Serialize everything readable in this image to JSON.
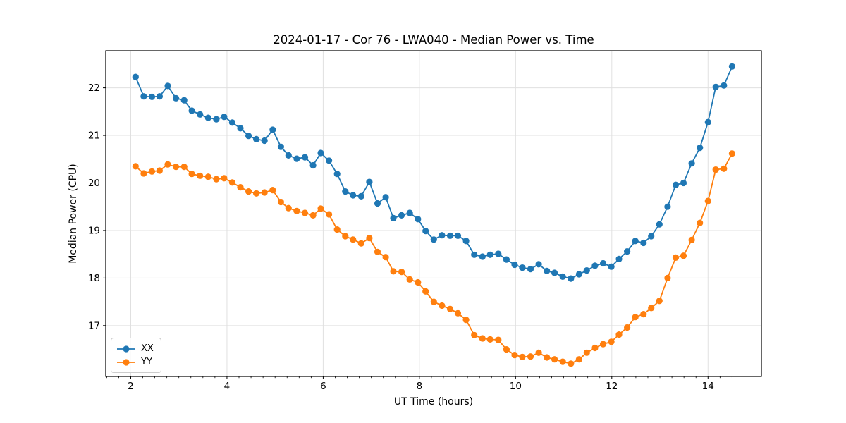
{
  "chart_data": {
    "type": "line",
    "title": "2024-01-17 - Cor 76 - LWA040 - Median Power vs. Time",
    "xlabel": "UT Time (hours)",
    "ylabel": "Median Power (CPU)",
    "xlim": [
      1.48,
      15.11
    ],
    "ylim": [
      15.93,
      22.78
    ],
    "xticks": [
      2,
      4,
      6,
      8,
      10,
      12,
      14
    ],
    "yticks": [
      17,
      18,
      19,
      20,
      21,
      22
    ],
    "x_minor_step": 0.25,
    "grid": true,
    "grid_color": "#e0e0e0",
    "spine_color": "#000000",
    "background": "#ffffff",
    "legend_position": "lower-left",
    "x": [
      2.1,
      2.27,
      2.44,
      2.6,
      2.77,
      2.94,
      3.11,
      3.27,
      3.44,
      3.61,
      3.78,
      3.94,
      4.11,
      4.28,
      4.45,
      4.61,
      4.78,
      4.95,
      5.12,
      5.28,
      5.45,
      5.62,
      5.79,
      5.95,
      6.12,
      6.29,
      6.46,
      6.62,
      6.79,
      6.96,
      7.13,
      7.3,
      7.46,
      7.63,
      7.8,
      7.97,
      8.13,
      8.3,
      8.47,
      8.64,
      8.8,
      8.97,
      9.14,
      9.31,
      9.47,
      9.64,
      9.81,
      9.98,
      10.14,
      10.31,
      10.48,
      10.65,
      10.81,
      10.98,
      11.15,
      11.32,
      11.48,
      11.65,
      11.82,
      11.99,
      12.15,
      12.32,
      12.49,
      12.66,
      12.82,
      12.99,
      13.16,
      13.33,
      13.49,
      13.66,
      13.83,
      14.0,
      14.16,
      14.33,
      14.5
    ],
    "series": [
      {
        "name": "XX",
        "color": "#1f77b4",
        "values": [
          22.23,
          21.82,
          21.81,
          21.82,
          22.04,
          21.78,
          21.74,
          21.52,
          21.44,
          21.37,
          21.34,
          21.39,
          21.27,
          21.15,
          20.99,
          20.92,
          20.89,
          21.12,
          20.76,
          20.58,
          20.51,
          20.54,
          20.37,
          20.63,
          20.47,
          20.19,
          19.82,
          19.74,
          19.72,
          20.02,
          19.57,
          19.7,
          19.26,
          19.32,
          19.37,
          19.24,
          18.99,
          18.81,
          18.9,
          18.89,
          18.89,
          18.78,
          18.49,
          18.45,
          18.49,
          18.51,
          18.39,
          18.28,
          18.22,
          18.19,
          18.29,
          18.15,
          18.11,
          18.03,
          17.99,
          18.08,
          18.16,
          18.26,
          18.31,
          18.24,
          18.4,
          18.56,
          18.78,
          18.74,
          18.88,
          19.13,
          19.5,
          19.96,
          20.0,
          20.41,
          20.74,
          21.28,
          22.02,
          22.05,
          22.45
        ]
      },
      {
        "name": "YY",
        "color": "#ff7f0e",
        "values": [
          20.35,
          20.2,
          20.24,
          20.26,
          20.39,
          20.34,
          20.34,
          20.19,
          20.15,
          20.13,
          20.08,
          20.1,
          20.01,
          19.91,
          19.82,
          19.78,
          19.8,
          19.85,
          19.6,
          19.47,
          19.41,
          19.37,
          19.32,
          19.46,
          19.34,
          19.02,
          18.88,
          18.81,
          18.73,
          18.84,
          18.55,
          18.44,
          18.14,
          18.13,
          17.97,
          17.91,
          17.72,
          17.5,
          17.42,
          17.35,
          17.26,
          17.12,
          16.8,
          16.73,
          16.71,
          16.7,
          16.5,
          16.38,
          16.34,
          16.35,
          16.43,
          16.33,
          16.29,
          16.24,
          16.2,
          16.29,
          16.43,
          16.53,
          16.61,
          16.66,
          16.81,
          16.96,
          17.18,
          17.24,
          17.37,
          17.52,
          18.0,
          18.43,
          18.47,
          18.8,
          19.16,
          19.62,
          20.28,
          20.3,
          20.62
        ]
      }
    ]
  }
}
